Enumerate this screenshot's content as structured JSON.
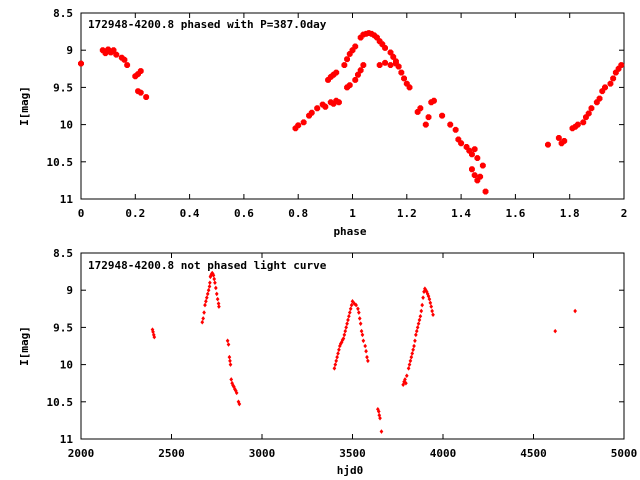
{
  "chart_data": [
    {
      "type": "scatter",
      "title": "172948-4200.8 phased with P=387.0day",
      "xlabel": "phase",
      "ylabel": "I[mag]",
      "xlim": [
        0,
        2
      ],
      "ylim": [
        11,
        8.5
      ],
      "x_ticks": [
        "0",
        "0.2",
        "0.4",
        "0.6",
        "0.8",
        "1",
        "1.2",
        "1.4",
        "1.6",
        "1.8",
        "2"
      ],
      "y_ticks": [
        "8.5",
        "9",
        "9.5",
        "10",
        "10.5",
        "11"
      ],
      "marker_color": "#ff0000",
      "series": [
        {
          "points": [
            [
              0.0,
              9.18
            ],
            [
              0.08,
              9.0
            ],
            [
              0.09,
              9.04
            ],
            [
              0.1,
              8.99
            ],
            [
              0.11,
              9.03
            ],
            [
              0.12,
              9.0
            ],
            [
              0.13,
              9.06
            ],
            [
              0.15,
              9.1
            ],
            [
              0.16,
              9.13
            ],
            [
              0.17,
              9.2
            ],
            [
              0.2,
              9.35
            ],
            [
              0.21,
              9.32
            ],
            [
              0.22,
              9.28
            ],
            [
              0.21,
              9.55
            ],
            [
              0.22,
              9.57
            ],
            [
              0.24,
              9.63
            ],
            [
              0.79,
              10.05
            ],
            [
              0.8,
              10.01
            ],
            [
              0.82,
              9.97
            ],
            [
              0.84,
              9.88
            ],
            [
              0.85,
              9.84
            ],
            [
              0.87,
              9.78
            ],
            [
              0.89,
              9.73
            ],
            [
              0.9,
              9.76
            ],
            [
              0.92,
              9.7
            ],
            [
              0.93,
              9.72
            ],
            [
              0.94,
              9.68
            ],
            [
              0.95,
              9.7
            ],
            [
              0.91,
              9.4
            ],
            [
              0.92,
              9.36
            ],
            [
              0.93,
              9.33
            ],
            [
              0.94,
              9.3
            ],
            [
              0.97,
              9.2
            ],
            [
              0.98,
              9.12
            ],
            [
              0.99,
              9.05
            ],
            [
              1.0,
              9.0
            ],
            [
              1.01,
              8.95
            ],
            [
              1.03,
              8.83
            ],
            [
              1.04,
              8.79
            ],
            [
              1.05,
              8.78
            ],
            [
              1.06,
              8.77
            ],
            [
              1.07,
              8.78
            ],
            [
              1.08,
              8.8
            ],
            [
              1.09,
              8.83
            ],
            [
              1.1,
              8.88
            ],
            [
              1.11,
              8.92
            ],
            [
              1.12,
              8.97
            ],
            [
              1.14,
              9.03
            ],
            [
              1.15,
              9.09
            ],
            [
              1.16,
              9.15
            ],
            [
              1.17,
              9.22
            ],
            [
              1.18,
              9.3
            ],
            [
              1.19,
              9.38
            ],
            [
              1.2,
              9.45
            ],
            [
              1.21,
              9.5
            ],
            [
              0.98,
              9.5
            ],
            [
              0.99,
              9.47
            ],
            [
              1.01,
              9.4
            ],
            [
              1.02,
              9.33
            ],
            [
              1.03,
              9.27
            ],
            [
              1.04,
              9.2
            ],
            [
              1.1,
              9.2
            ],
            [
              1.12,
              9.17
            ],
            [
              1.14,
              9.2
            ],
            [
              1.16,
              9.18
            ],
            [
              1.24,
              9.83
            ],
            [
              1.25,
              9.78
            ],
            [
              1.27,
              10.0
            ],
            [
              1.28,
              9.9
            ],
            [
              1.29,
              9.7
            ],
            [
              1.3,
              9.68
            ],
            [
              1.33,
              9.88
            ],
            [
              1.36,
              10.0
            ],
            [
              1.38,
              10.07
            ],
            [
              1.39,
              10.2
            ],
            [
              1.4,
              10.25
            ],
            [
              1.42,
              10.3
            ],
            [
              1.43,
              10.35
            ],
            [
              1.44,
              10.4
            ],
            [
              1.45,
              10.33
            ],
            [
              1.46,
              10.45
            ],
            [
              1.44,
              10.6
            ],
            [
              1.45,
              10.68
            ],
            [
              1.46,
              10.75
            ],
            [
              1.47,
              10.7
            ],
            [
              1.48,
              10.55
            ],
            [
              1.49,
              10.9
            ],
            [
              1.72,
              10.27
            ],
            [
              1.76,
              10.18
            ],
            [
              1.77,
              10.25
            ],
            [
              1.78,
              10.22
            ],
            [
              1.81,
              10.05
            ],
            [
              1.82,
              10.03
            ],
            [
              1.83,
              10.0
            ],
            [
              1.85,
              9.97
            ],
            [
              1.86,
              9.9
            ],
            [
              1.87,
              9.85
            ],
            [
              1.88,
              9.78
            ],
            [
              1.9,
              9.7
            ],
            [
              1.91,
              9.65
            ],
            [
              1.92,
              9.55
            ],
            [
              1.93,
              9.5
            ],
            [
              1.95,
              9.45
            ],
            [
              1.96,
              9.38
            ],
            [
              1.97,
              9.3
            ],
            [
              1.98,
              9.25
            ],
            [
              1.99,
              9.2
            ]
          ]
        }
      ]
    },
    {
      "type": "scatter",
      "title": "172948-4200.8 not phased light curve",
      "xlabel": "hjd0",
      "ylabel": "I[mag]",
      "xlim": [
        2000,
        5000
      ],
      "ylim": [
        11,
        8.5
      ],
      "x_ticks": [
        "2000",
        "2500",
        "3000",
        "3500",
        "4000",
        "4500",
        "5000"
      ],
      "y_ticks": [
        "8.5",
        "9",
        "9.5",
        "10",
        "10.5",
        "11"
      ],
      "marker_color": "#ff0000",
      "series": [
        {
          "points": [
            [
              2395,
              9.53
            ],
            [
              2398,
              9.56
            ],
            [
              2402,
              9.6
            ],
            [
              2405,
              9.63
            ],
            [
              2670,
              9.43
            ],
            [
              2675,
              9.38
            ],
            [
              2680,
              9.3
            ],
            [
              2685,
              9.2
            ],
            [
              2690,
              9.15
            ],
            [
              2695,
              9.1
            ],
            [
              2700,
              9.05
            ],
            [
              2705,
              9.0
            ],
            [
              2710,
              8.95
            ],
            [
              2712,
              8.9
            ],
            [
              2715,
              8.82
            ],
            [
              2718,
              8.8
            ],
            [
              2722,
              8.78
            ],
            [
              2725,
              8.77
            ],
            [
              2728,
              8.78
            ],
            [
              2732,
              8.8
            ],
            [
              2736,
              8.85
            ],
            [
              2740,
              8.9
            ],
            [
              2745,
              8.97
            ],
            [
              2750,
              9.05
            ],
            [
              2755,
              9.12
            ],
            [
              2760,
              9.18
            ],
            [
              2762,
              9.22
            ],
            [
              2810,
              9.68
            ],
            [
              2815,
              9.73
            ],
            [
              2820,
              9.9
            ],
            [
              2823,
              9.95
            ],
            [
              2826,
              10.0
            ],
            [
              2830,
              10.2
            ],
            [
              2835,
              10.25
            ],
            [
              2840,
              10.28
            ],
            [
              2845,
              10.3
            ],
            [
              2850,
              10.33
            ],
            [
              2855,
              10.35
            ],
            [
              2860,
              10.38
            ],
            [
              2870,
              10.5
            ],
            [
              2875,
              10.53
            ],
            [
              3400,
              10.05
            ],
            [
              3405,
              10.0
            ],
            [
              3410,
              9.95
            ],
            [
              3415,
              9.9
            ],
            [
              3420,
              9.85
            ],
            [
              3425,
              9.8
            ],
            [
              3430,
              9.75
            ],
            [
              3435,
              9.72
            ],
            [
              3440,
              9.7
            ],
            [
              3445,
              9.67
            ],
            [
              3450,
              9.65
            ],
            [
              3455,
              9.6
            ],
            [
              3460,
              9.55
            ],
            [
              3465,
              9.5
            ],
            [
              3470,
              9.45
            ],
            [
              3475,
              9.4
            ],
            [
              3480,
              9.35
            ],
            [
              3485,
              9.3
            ],
            [
              3490,
              9.25
            ],
            [
              3495,
              9.2
            ],
            [
              3500,
              9.15
            ],
            [
              3510,
              9.18
            ],
            [
              3520,
              9.2
            ],
            [
              3530,
              9.25
            ],
            [
              3535,
              9.3
            ],
            [
              3540,
              9.38
            ],
            [
              3545,
              9.45
            ],
            [
              3550,
              9.55
            ],
            [
              3555,
              9.6
            ],
            [
              3560,
              9.68
            ],
            [
              3570,
              9.75
            ],
            [
              3575,
              9.82
            ],
            [
              3580,
              9.9
            ],
            [
              3585,
              9.95
            ],
            [
              3640,
              10.6
            ],
            [
              3645,
              10.63
            ],
            [
              3648,
              10.68
            ],
            [
              3652,
              10.72
            ],
            [
              3660,
              10.9
            ],
            [
              3780,
              10.27
            ],
            [
              3785,
              10.23
            ],
            [
              3790,
              10.2
            ],
            [
              3795,
              10.25
            ],
            [
              3800,
              10.15
            ],
            [
              3810,
              10.05
            ],
            [
              3815,
              10.0
            ],
            [
              3820,
              9.95
            ],
            [
              3825,
              9.9
            ],
            [
              3830,
              9.85
            ],
            [
              3835,
              9.8
            ],
            [
              3840,
              9.75
            ],
            [
              3845,
              9.68
            ],
            [
              3850,
              9.6
            ],
            [
              3855,
              9.55
            ],
            [
              3860,
              9.5
            ],
            [
              3865,
              9.45
            ],
            [
              3870,
              9.4
            ],
            [
              3875,
              9.35
            ],
            [
              3880,
              9.28
            ],
            [
              3885,
              9.2
            ],
            [
              3890,
              9.1
            ],
            [
              3895,
              9.02
            ],
            [
              3900,
              8.98
            ],
            [
              3905,
              9.0
            ],
            [
              3910,
              9.02
            ],
            [
              3915,
              9.05
            ],
            [
              3920,
              9.08
            ],
            [
              3925,
              9.12
            ],
            [
              3930,
              9.17
            ],
            [
              3935,
              9.22
            ],
            [
              3940,
              9.28
            ],
            [
              3945,
              9.33
            ],
            [
              4620,
              9.55
            ],
            [
              4730,
              9.28
            ]
          ]
        }
      ]
    }
  ]
}
